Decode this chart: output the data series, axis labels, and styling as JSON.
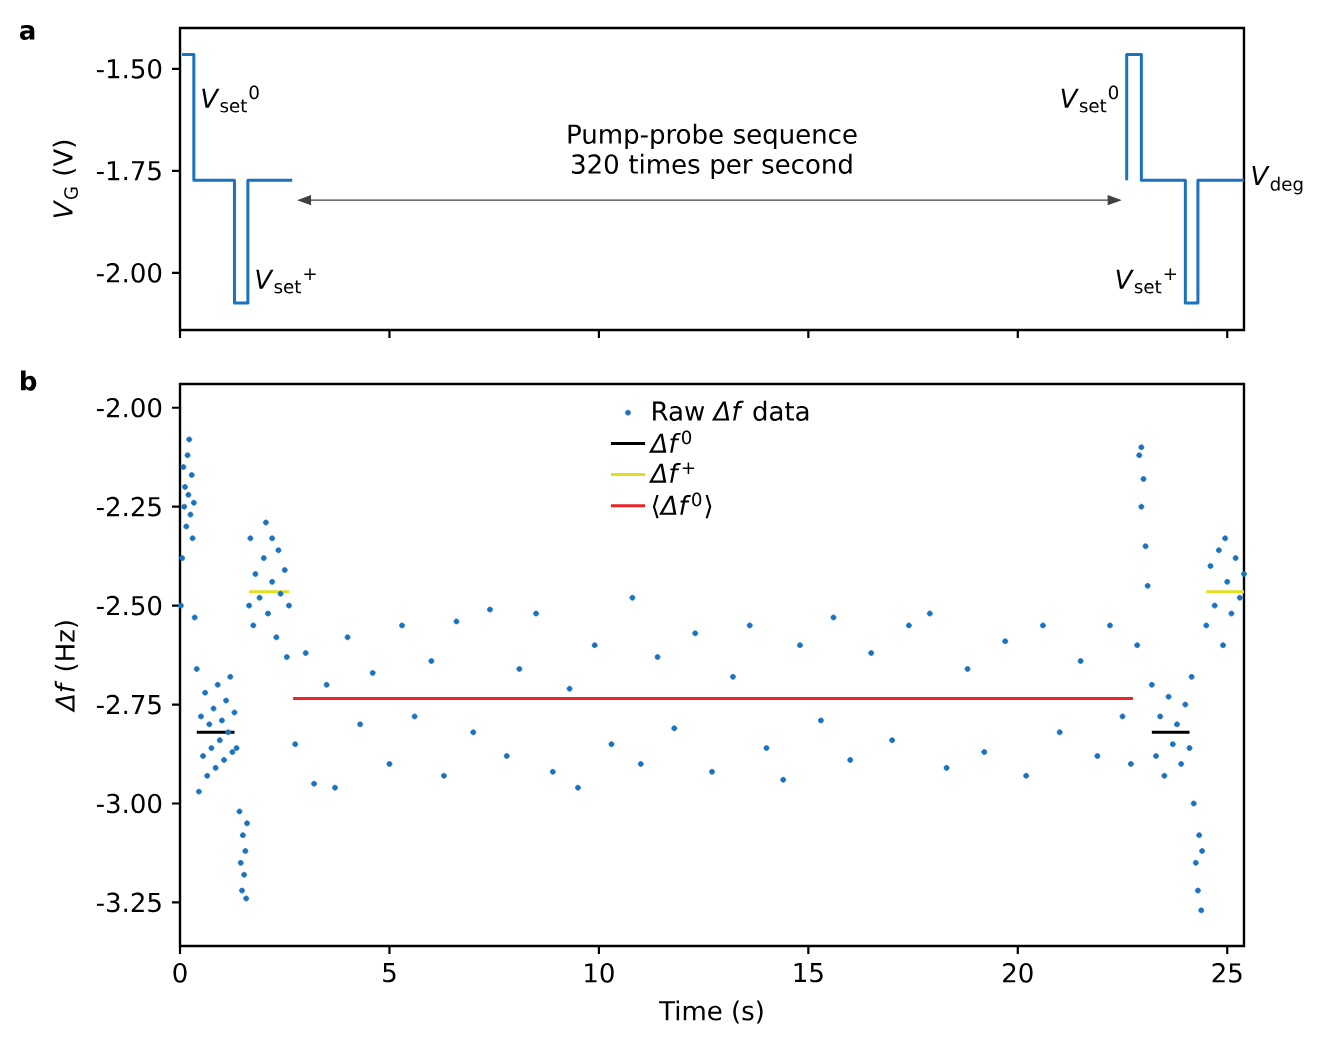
{
  "chart_data": [
    {
      "type": "line",
      "title": "a",
      "ylabel": "*V*$_{G}$ (V)",
      "xlim": [
        0,
        25.4
      ],
      "ylim": [
        -2.14,
        -1.4
      ],
      "xticks": [
        0,
        5,
        10,
        15,
        20,
        25
      ],
      "yticks": [
        {
          "value": -1.5,
          "label": "-1.50"
        },
        {
          "value": -1.75,
          "label": "-1.75"
        },
        {
          "value": -2.0,
          "label": "-2.00"
        }
      ],
      "tick_labels": "y",
      "series": [
        {
          "color": "#1a73c0",
          "x": [
            0.05,
            0.33,
            0.33,
            1.3,
            1.3,
            1.62,
            1.62,
            2.68,
            12,
            22.6,
            22.6,
            22.95,
            22.95,
            24.0,
            24.0,
            24.3,
            24.3,
            25.4
          ],
          "values": [
            -1.465,
            -1.465,
            -1.773,
            -1.773,
            -2.074,
            -2.074,
            -1.773,
            -1.773,
            null,
            -1.773,
            -1.465,
            -1.465,
            -1.773,
            -1.773,
            -2.074,
            -2.074,
            -1.773,
            -1.773
          ]
        }
      ],
      "annotations": [
        {
          "text": "*V*$_{set}$$^{0}$",
          "x": 0.33,
          "y": -1.574
        },
        {
          "text": "*V*$_{set}$$^{+}$",
          "x": 1.62,
          "y": -2.02
        },
        {
          "text": "*V*$_{set}$$^{0}$",
          "x": 22.6,
          "y": -1.574
        },
        {
          "text": "*V*$_{set}$$^{+}$",
          "x": 24.0,
          "y": -2.02
        },
        {
          "text": "*V*$_{deg}$",
          "x": 25.4,
          "y": -1.773
        },
        "Pump-probe sequence 320 times per second"
      ]
    },
    {
      "type": "scatter",
      "title": "b",
      "xlabel": "Time (s)",
      "ylabel": "*Δf* (Hz)",
      "xlim": [
        0,
        25.4
      ],
      "ylim": [
        -3.36,
        -1.94
      ],
      "xticks": [
        0,
        5,
        10,
        15,
        20,
        25
      ],
      "yticks": [
        {
          "value": -2.0,
          "label": "-2.00"
        },
        {
          "value": -2.25,
          "label": "-2.25"
        },
        {
          "value": -2.5,
          "label": "-2.50"
        },
        {
          "value": -2.75,
          "label": "-2.75"
        },
        {
          "value": -3.0,
          "label": "-3.00"
        },
        {
          "value": -3.25,
          "label": "-3.25"
        }
      ],
      "legend": "top",
      "series": [
        {
          "name": "Raw *Δf* data",
          "marker": "circle",
          "color": "#1a73c0",
          "x": [
            0.02,
            0.05,
            0.08,
            0.1,
            0.12,
            0.15,
            0.18,
            0.2,
            0.22,
            0.25,
            0.28,
            0.3,
            0.33,
            0.35,
            0.4,
            0.45,
            0.5,
            0.55,
            0.6,
            0.65,
            0.7,
            0.75,
            0.8,
            0.85,
            0.9,
            0.95,
            1.0,
            1.05,
            1.1,
            1.15,
            1.2,
            1.25,
            1.3,
            1.35,
            1.42,
            1.45,
            1.48,
            1.5,
            1.53,
            1.56,
            1.58,
            1.6,
            1.65,
            1.68,
            1.75,
            1.8,
            1.9,
            2.0,
            2.05,
            2.1,
            2.2,
            2.2,
            2.3,
            2.35,
            2.4,
            2.5,
            2.55,
            2.6,
            2.75,
            3.0,
            3.2,
            3.5,
            3.7,
            4.0,
            4.3,
            4.6,
            5.0,
            5.3,
            5.6,
            6.0,
            6.3,
            6.6,
            7.0,
            7.4,
            7.8,
            8.1,
            8.5,
            8.9,
            9.3,
            9.5,
            9.9,
            10.3,
            10.8,
            11.0,
            11.4,
            11.8,
            12.3,
            12.7,
            13.2,
            13.6,
            14.0,
            14.4,
            14.8,
            15.3,
            15.6,
            16.0,
            16.5,
            17.0,
            17.4,
            17.9,
            18.3,
            18.8,
            19.2,
            19.7,
            20.2,
            20.6,
            21.0,
            21.5,
            21.9,
            22.2,
            22.5,
            22.7,
            22.85,
            22.9,
            22.95,
            22.95,
            23.0,
            23.05,
            23.1,
            23.2,
            23.3,
            23.4,
            23.5,
            23.6,
            23.7,
            23.8,
            23.9,
            24.0,
            24.1,
            24.15,
            24.2,
            24.25,
            24.3,
            24.33,
            24.38,
            24.4,
            24.5,
            24.6,
            24.7,
            24.8,
            24.9,
            24.95,
            25.0,
            25.1,
            25.2,
            25.3,
            25.4
          ],
          "values": [
            -2.5,
            -2.38,
            -2.15,
            -2.25,
            -2.2,
            -2.3,
            -2.12,
            -2.22,
            -2.08,
            -2.27,
            -2.17,
            -2.33,
            -2.24,
            -2.53,
            -2.66,
            -2.97,
            -2.78,
            -2.88,
            -2.72,
            -2.93,
            -2.8,
            -2.86,
            -2.76,
            -2.91,
            -2.7,
            -2.84,
            -2.79,
            -2.89,
            -2.74,
            -2.82,
            -2.68,
            -2.87,
            -2.77,
            -2.86,
            -3.02,
            -3.15,
            -3.22,
            -3.08,
            -3.18,
            -3.12,
            -3.24,
            -3.05,
            -2.5,
            -2.33,
            -2.55,
            -2.42,
            -2.48,
            -2.38,
            -2.29,
            -2.52,
            -2.44,
            -2.33,
            -2.58,
            -2.36,
            -2.47,
            -2.41,
            -2.63,
            -2.5,
            -2.85,
            -2.62,
            -2.95,
            -2.7,
            -2.96,
            -2.58,
            -2.8,
            -2.67,
            -2.9,
            -2.55,
            -2.78,
            -2.64,
            -2.93,
            -2.54,
            -2.82,
            -2.51,
            -2.88,
            -2.66,
            -2.52,
            -2.92,
            -2.71,
            -2.96,
            -2.6,
            -2.85,
            -2.48,
            -2.9,
            -2.63,
            -2.81,
            -2.57,
            -2.92,
            -2.68,
            -2.55,
            -2.86,
            -2.94,
            -2.6,
            -2.79,
            -2.53,
            -2.89,
            -2.62,
            -2.84,
            -2.55,
            -2.52,
            -2.91,
            -2.66,
            -2.87,
            -2.59,
            -2.93,
            -2.55,
            -2.82,
            -2.64,
            -2.88,
            -2.55,
            -2.78,
            -2.9,
            -2.6,
            -2.12,
            -2.25,
            -2.1,
            -2.18,
            -2.35,
            -2.45,
            -2.7,
            -2.88,
            -2.78,
            -2.93,
            -2.73,
            -2.85,
            -2.8,
            -2.9,
            -2.75,
            -2.86,
            -2.68,
            -3.0,
            -3.15,
            -3.22,
            -3.08,
            -3.27,
            -3.12,
            -2.55,
            -2.4,
            -2.5,
            -2.36,
            -2.6,
            -2.33,
            -2.44,
            -2.52,
            -2.38,
            -2.48,
            -2.42
          ]
        },
        {
          "type": "line",
          "marker": "none",
          "name": "*Δf*$^{0}$",
          "color": "#000000",
          "x": [
            0.4,
            1.3,
            12,
            23.2,
            24.1
          ],
          "values": [
            -2.82,
            -2.82,
            null,
            -2.82,
            -2.82
          ]
        },
        {
          "type": "line",
          "marker": "none",
          "name": "*Δf*$^{+}$",
          "color": "#e0e020",
          "x": [
            1.65,
            2.6,
            12,
            24.5,
            25.4
          ],
          "values": [
            -2.465,
            -2.465,
            null,
            -2.465,
            -2.465
          ]
        },
        {
          "type": "line",
          "marker": "none",
          "name": "⟨*Δf*$^{0}$⟩",
          "color": "#e8262a",
          "x": [
            2.7,
            22.75
          ],
          "values": [
            -2.735,
            -2.735
          ]
        }
      ]
    }
  ]
}
